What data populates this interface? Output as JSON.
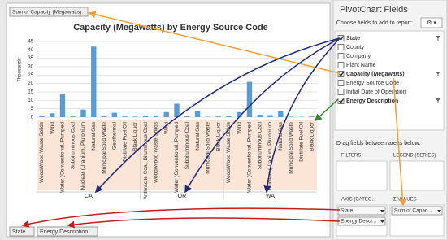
{
  "chart": {
    "title": "Capacity (Megawatts) by Energy Source Code",
    "y_axis_label": "Thousands",
    "ylim": [
      0,
      45
    ],
    "yticks": [
      0,
      5,
      10,
      15,
      20,
      25,
      30,
      35,
      40,
      45
    ],
    "bar_color": "#5b9bd5",
    "grid": true,
    "groups": [
      {
        "name": "CA",
        "categories": [
          "Wood/Wood Waste Solids",
          "Wind",
          "Water (Conventional, Pumped",
          "Subbituminous Coal",
          "Nuclear (Uranium, Plutonium",
          "Natural Gas",
          "Municipal Solid Waste",
          "Geothermal",
          "Distillate Fuel Oil",
          "Black Liquor"
        ],
        "values": [
          0.5,
          2.3,
          13.5,
          0.4,
          4.5,
          42,
          0.5,
          2.6,
          0.4,
          0.3
        ]
      },
      {
        "name": "OR",
        "categories": [
          "Anthracite Coal, Bituminous Coal",
          "Wood/Wood Waste Solids",
          "Wind",
          "Water (Conventional, Pumped",
          "Subbituminous Coal",
          "Natural Gas",
          "Municipal Solid Waste",
          "Black Liquor"
        ],
        "values": [
          0.5,
          0.8,
          3,
          8,
          0.6,
          3.5,
          0.2,
          0.4
        ]
      },
      {
        "name": "WA",
        "categories": [
          "Wood/Wood Waste Solids",
          "Wind",
          "Water (Conventional, Pumped",
          "Subbituminous Coal",
          "Nuclear (Uranium, Plutonium",
          "Natural Gas",
          "Municipal Solid Waste",
          "Distillate Fuel Oil",
          "Black Liquor"
        ],
        "values": [
          0.8,
          3,
          21,
          1.4,
          1.2,
          3.5,
          0.3,
          0.2,
          0.4
        ]
      }
    ]
  },
  "chart_buttons": {
    "value_field": "Sum of Capacity (Megawatts)",
    "axis_fields": [
      "State",
      "Energy Description"
    ]
  },
  "panel": {
    "title": "PivotChart Fields",
    "prompt": "Choose fields to add to report:",
    "fields": [
      {
        "label": "State",
        "checked": true
      },
      {
        "label": "County",
        "checked": false
      },
      {
        "label": "Company",
        "checked": false
      },
      {
        "label": "Plant Name",
        "checked": false
      },
      {
        "label": "Capacity (Megawatts)",
        "checked": true
      },
      {
        "label": "Energy Source Code",
        "checked": false
      },
      {
        "label": "Initial Date of Operation",
        "checked": false
      },
      {
        "label": "Energy Description",
        "checked": true
      }
    ],
    "drag_prompt": "Drag fields between areas below:",
    "filters": "FILTERS",
    "legend": "LEGEND (SERIES)",
    "axis": "AXIS (CATEG...",
    "values": "Σ VALUES",
    "axis_items": [
      "State",
      "Energy Descr..."
    ],
    "values_items": [
      "Sum of Capac..."
    ]
  }
}
